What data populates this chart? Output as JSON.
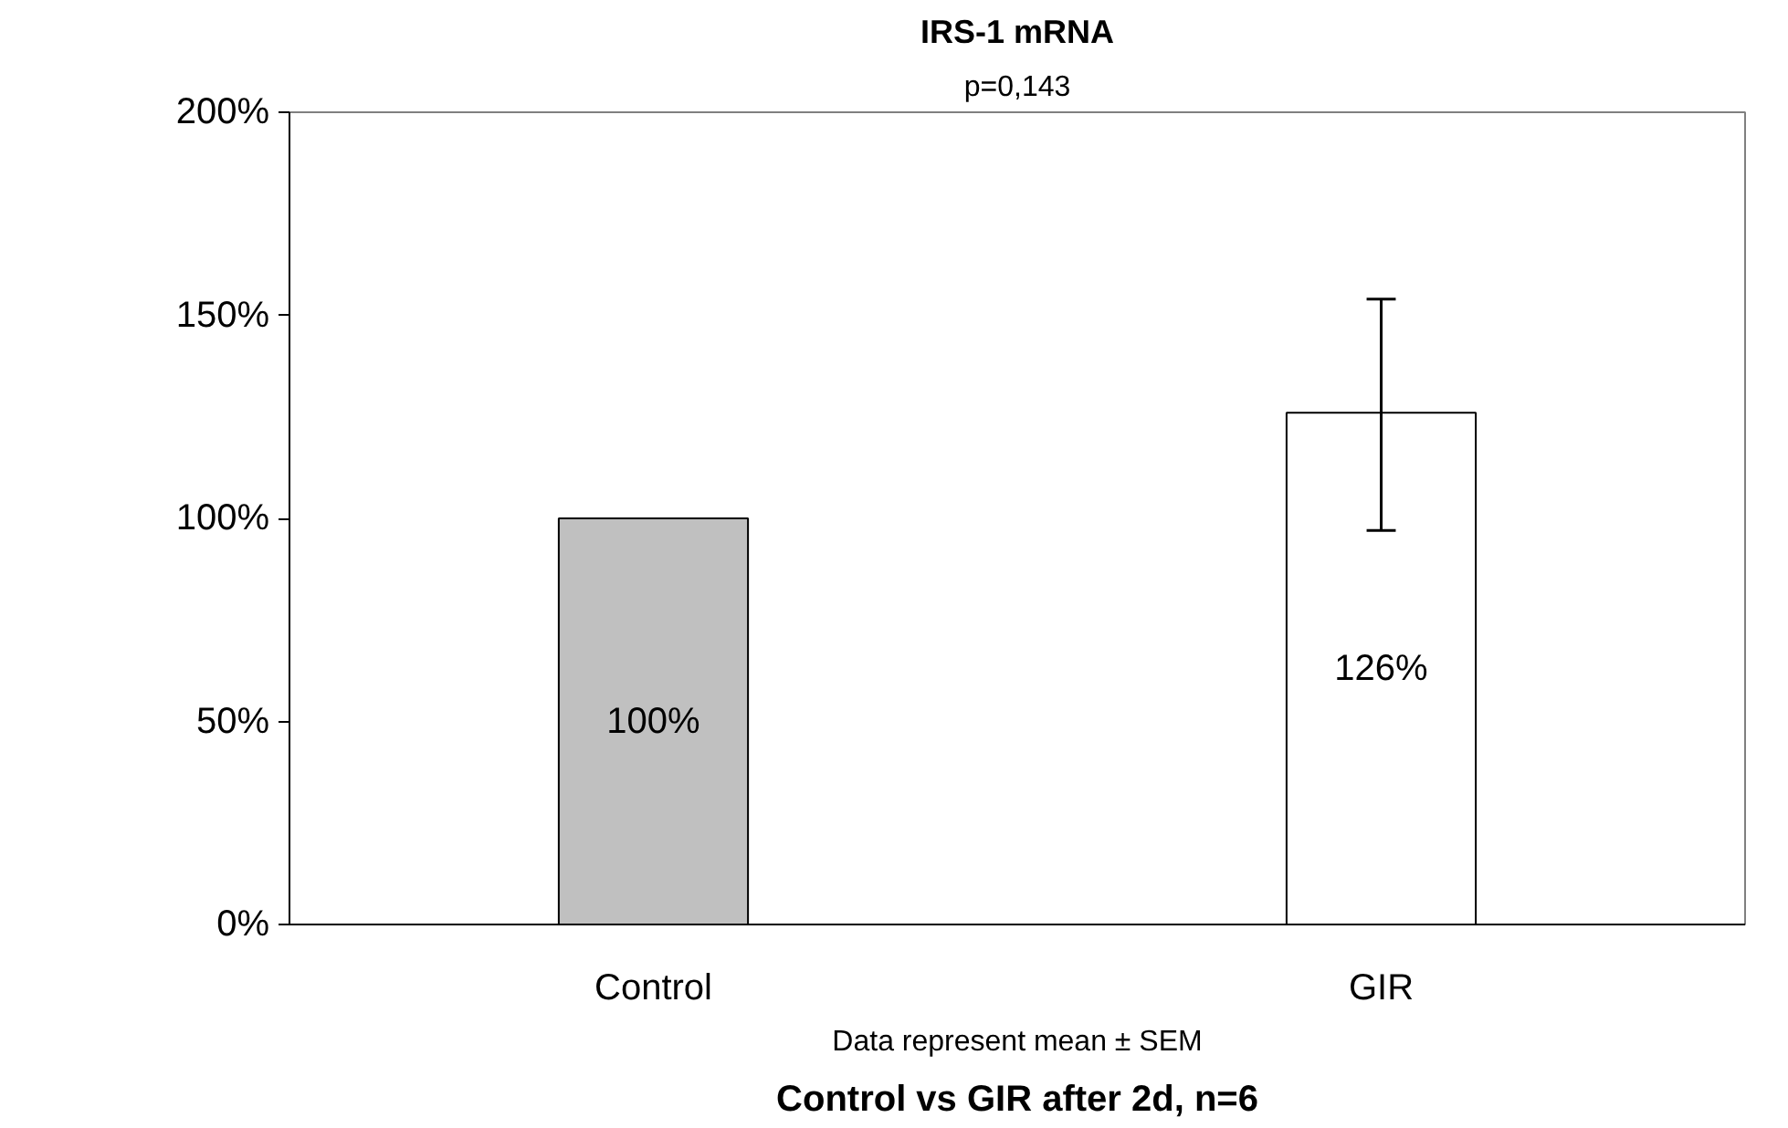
{
  "chart_data": {
    "type": "bar",
    "title": "IRS-1 mRNA",
    "subtitle": "p=0,143",
    "xlabel": "Control vs GIR after 2d, n=6",
    "annotations": [
      "Data represent mean ± SEM"
    ],
    "categories": [
      "Control",
      "GIR"
    ],
    "values": [
      100,
      126
    ],
    "colors": [
      "#c0c0c0",
      "#ffffff"
    ],
    "errors": [
      null,
      [
        97,
        154
      ]
    ],
    "value_labels": [
      "100%",
      "126%"
    ],
    "ylim": [
      0,
      200
    ],
    "yticks": [
      {
        "value": 0,
        "label": "0%"
      },
      {
        "value": 50,
        "label": "50%"
      },
      {
        "value": 100,
        "label": "100%"
      },
      {
        "value": 150,
        "label": "150%"
      },
      {
        "value": 200,
        "label": "200%"
      }
    ],
    "grid": false
  }
}
